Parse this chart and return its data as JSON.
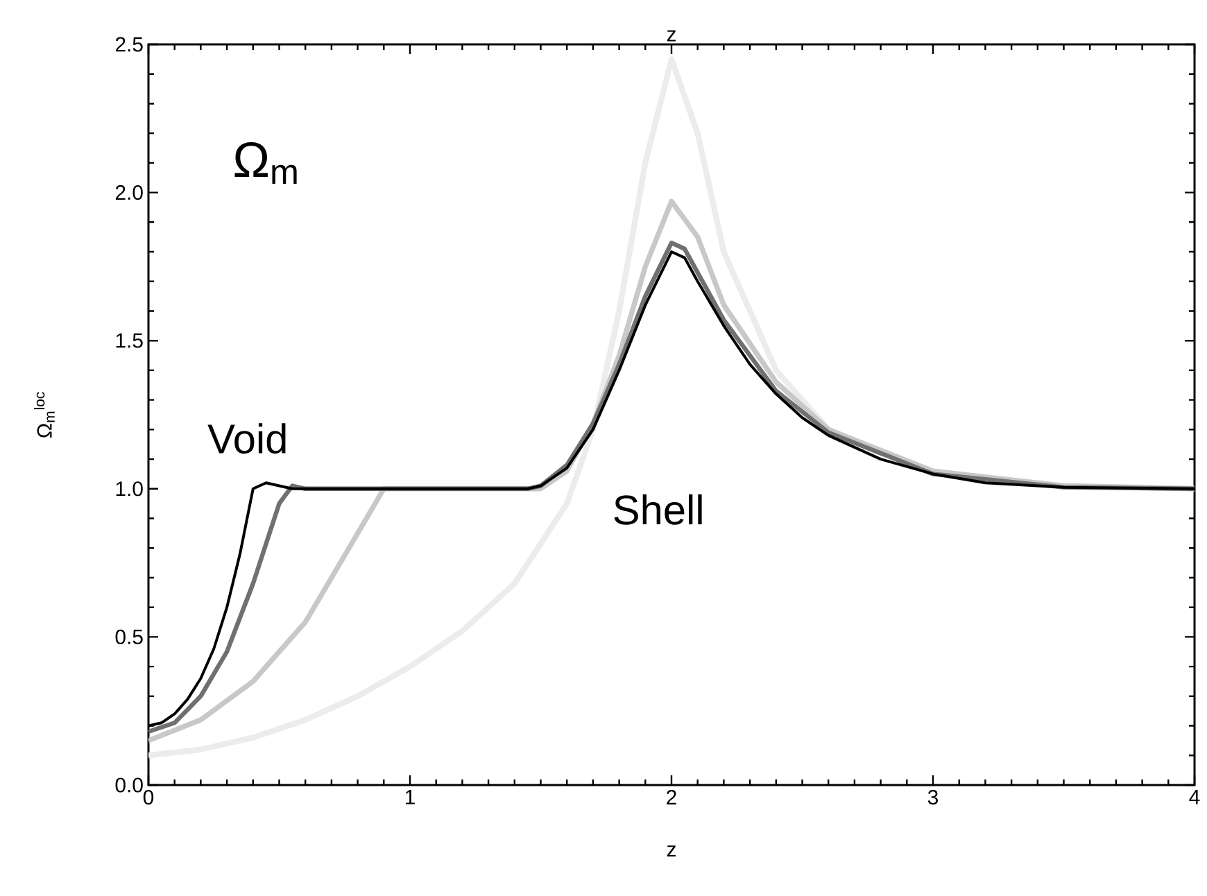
{
  "chart_data": {
    "type": "line",
    "xlabel": "z",
    "x2label": "z",
    "ylabel": "Ω$_{m}$$^{loc}$",
    "annotations": [
      "Ω$_{m}$",
      "Void",
      "Shell"
    ],
    "xlim": [
      0,
      4
    ],
    "xticks": [
      0,
      1,
      2,
      3,
      4
    ],
    "ylim": [
      0,
      2.5
    ],
    "yticks": [
      {
        "value": 0,
        "label": "0.0"
      },
      0.5,
      {
        "value": 1,
        "label": "1.0"
      },
      1.5,
      {
        "value": 2,
        "label": "2.0"
      },
      2.5
    ],
    "grid": false,
    "marker": "none",
    "line_style": "solid",
    "series": [
      {
        "color": "#ececec",
        "x": [
          0,
          0.2,
          0.4,
          0.6,
          0.8,
          1.0,
          1.2,
          1.4,
          1.6,
          1.7,
          1.8,
          1.9,
          2.0,
          2.1,
          2.2,
          2.4,
          2.6,
          3.0,
          3.5,
          4
        ],
        "values": [
          0.1,
          0.12,
          0.16,
          0.22,
          0.3,
          0.4,
          0.52,
          0.68,
          0.95,
          1.2,
          1.6,
          2.1,
          2.45,
          2.2,
          1.8,
          1.4,
          1.2,
          1.05,
          1.01,
          1.0
        ]
      },
      {
        "color": "#c8c8c8",
        "x": [
          0,
          0.2,
          0.4,
          0.6,
          0.8,
          0.9,
          1.0,
          1.5,
          1.6,
          1.7,
          1.8,
          1.9,
          2.0,
          2.1,
          2.2,
          2.4,
          2.6,
          3.0,
          3.5,
          4
        ],
        "values": [
          0.15,
          0.22,
          0.35,
          0.55,
          0.85,
          1.0,
          1.0,
          1.0,
          1.06,
          1.22,
          1.45,
          1.75,
          1.97,
          1.85,
          1.62,
          1.36,
          1.2,
          1.06,
          1.01,
          1.0
        ]
      },
      {
        "color": "#707070",
        "x": [
          0,
          0.1,
          0.2,
          0.3,
          0.4,
          0.5,
          0.55,
          0.6,
          1.45,
          1.5,
          1.6,
          1.7,
          1.8,
          1.9,
          2.0,
          2.05,
          2.1,
          2.2,
          2.4,
          2.6,
          3.0,
          3.5,
          4
        ],
        "values": [
          0.18,
          0.21,
          0.3,
          0.45,
          0.68,
          0.95,
          1.01,
          1.0,
          1.0,
          1.01,
          1.08,
          1.22,
          1.42,
          1.65,
          1.83,
          1.81,
          1.73,
          1.57,
          1.33,
          1.19,
          1.05,
          1.005,
          1.0
        ]
      },
      {
        "color": "#000000",
        "x": [
          0,
          0.05,
          0.1,
          0.15,
          0.2,
          0.25,
          0.3,
          0.35,
          0.4,
          0.45,
          0.55,
          1.45,
          1.5,
          1.6,
          1.7,
          1.8,
          1.9,
          2.0,
          2.05,
          2.1,
          2.2,
          2.3,
          2.4,
          2.5,
          2.6,
          2.8,
          3.0,
          3.2,
          3.5,
          4
        ],
        "values": [
          0.2,
          0.21,
          0.24,
          0.29,
          0.36,
          0.46,
          0.6,
          0.78,
          1.0,
          1.02,
          1.0,
          1.0,
          1.01,
          1.07,
          1.2,
          1.4,
          1.62,
          1.8,
          1.78,
          1.7,
          1.55,
          1.42,
          1.32,
          1.24,
          1.18,
          1.1,
          1.05,
          1.02,
          1.005,
          1.0
        ]
      }
    ]
  }
}
